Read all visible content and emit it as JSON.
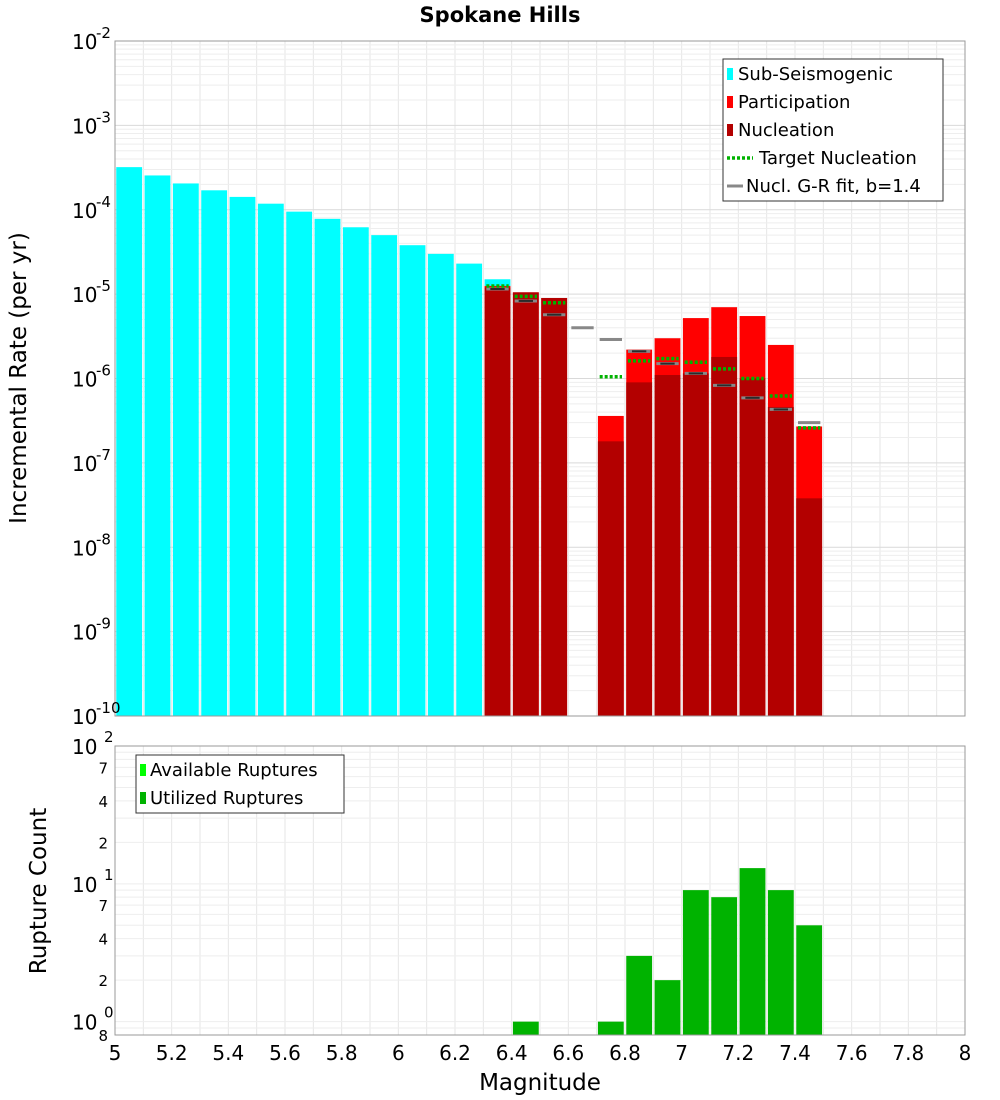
{
  "chart_data": [
    {
      "type": "bar",
      "title": "Spokane Hills",
      "xlabel": "",
      "ylabel": "Incremental Rate (per yr)",
      "yscale": "log",
      "ylim": [
        1e-10,
        0.01
      ],
      "xlim": [
        5,
        8
      ],
      "legend_position": "top-right",
      "y_ticks": [
        {
          "base": "10",
          "exp": "-10"
        },
        {
          "base": "10",
          "exp": "-9"
        },
        {
          "base": "10",
          "exp": "-8"
        },
        {
          "base": "10",
          "exp": "-7"
        },
        {
          "base": "10",
          "exp": "-6"
        },
        {
          "base": "10",
          "exp": "-5"
        },
        {
          "base": "10",
          "exp": "-4"
        },
        {
          "base": "10",
          "exp": "-3"
        },
        {
          "base": "10",
          "exp": "-2"
        }
      ],
      "legend": [
        {
          "label": "Sub-Seismogenic",
          "color": "#00ffff",
          "kind": "box"
        },
        {
          "label": "Participation",
          "color": "#ff0000",
          "kind": "box"
        },
        {
          "label": "Nucleation",
          "color": "#b30000",
          "kind": "box"
        },
        {
          "label": "Target Nucleation",
          "color": "#00b300",
          "kind": "dotted"
        },
        {
          "label": "Nucl. G-R fit, b=1.4",
          "color": "#888888",
          "kind": "solid"
        }
      ],
      "series": [
        {
          "name": "Sub-Seismogenic",
          "color": "#00ffff",
          "x": [
            5.05,
            5.15,
            5.25,
            5.35,
            5.45,
            5.55,
            5.65,
            5.75,
            5.85,
            5.95,
            6.05,
            6.15,
            6.25,
            6.35
          ],
          "values": [
            0.00032,
            0.000255,
            0.000205,
            0.00017,
            0.000142,
            0.000118,
            9.5e-05,
            7.8e-05,
            6.2e-05,
            5e-05,
            3.8e-05,
            3e-05,
            2.3e-05,
            1.5e-05
          ]
        },
        {
          "name": "Participation",
          "color": "#ff0000",
          "x": [
            6.35,
            6.45,
            6.55,
            6.75,
            6.85,
            6.95,
            7.05,
            7.15,
            7.25,
            7.35,
            7.45
          ],
          "values": [
            1.25e-05,
            1.05e-05,
            9e-06,
            3.6e-07,
            2.2e-06,
            3e-06,
            5.2e-06,
            7e-06,
            5.5e-06,
            2.5e-06,
            2.7e-07
          ]
        },
        {
          "name": "Nucleation",
          "color": "#b30000",
          "x": [
            6.35,
            6.45,
            6.55,
            6.75,
            6.85,
            6.95,
            7.05,
            7.15,
            7.25,
            7.35,
            7.45
          ],
          "values": [
            1.2e-05,
            1.05e-05,
            9e-06,
            1.8e-07,
            9e-07,
            1.1e-06,
            1.15e-06,
            1.8e-06,
            1e-06,
            4.6e-07,
            3.8e-08
          ]
        },
        {
          "name": "Target Nucleation",
          "color": "#00b300",
          "x": [
            6.35,
            6.45,
            6.55,
            6.75,
            6.85,
            6.95,
            7.05,
            7.15,
            7.25,
            7.35,
            7.45
          ],
          "values": [
            1.25e-05,
            9.4e-06,
            7.9e-06,
            1.05e-06,
            1.62e-06,
            1.72e-06,
            1.56e-06,
            1.3e-06,
            1e-06,
            6.2e-07,
            2.6e-07
          ]
        },
        {
          "name": "Nucl. G-R fit, b=1.4",
          "color": "#888888",
          "x": [
            6.35,
            6.45,
            6.55,
            6.65,
            6.75,
            6.85,
            6.95,
            7.05,
            7.15,
            7.25,
            7.35,
            7.45
          ],
          "values": [
            1.15e-05,
            8.3e-06,
            5.7e-06,
            4e-06,
            2.9e-06,
            2.1e-06,
            1.5e-06,
            1.15e-06,
            8.3e-07,
            5.9e-07,
            4.3e-07,
            3e-07
          ]
        }
      ]
    },
    {
      "type": "bar",
      "title": "",
      "xlabel": "Magnitude",
      "ylabel": "Rupture Count",
      "yscale": "log",
      "ylim": [
        0.8,
        100
      ],
      "xlim": [
        5,
        8
      ],
      "legend_position": "top-left",
      "x_ticks": [
        "5",
        "5.2",
        "5.4",
        "5.6",
        "5.8",
        "6",
        "6.2",
        "6.4",
        "6.6",
        "6.8",
        "7",
        "7.2",
        "7.4",
        "7.6",
        "7.8",
        "8"
      ],
      "y_ticks": [
        {
          "base": "10",
          "exp": "0"
        },
        {
          "base": "10",
          "exp": "1"
        },
        {
          "base": "10",
          "exp": "2"
        }
      ],
      "y_minor_ticks": [
        "8",
        "2",
        "4",
        "7",
        "2",
        "4",
        "7"
      ],
      "legend": [
        {
          "label": "Available Ruptures",
          "color": "#00ff00",
          "kind": "box"
        },
        {
          "label": "Utilized Ruptures",
          "color": "#00b300",
          "kind": "box"
        }
      ],
      "series": [
        {
          "name": "Utilized Ruptures",
          "color": "#00b300",
          "x": [
            6.45,
            6.75,
            6.85,
            6.95,
            7.05,
            7.15,
            7.25,
            7.35,
            7.45
          ],
          "values": [
            1,
            1,
            3,
            2,
            9,
            8,
            13,
            9,
            5
          ]
        }
      ]
    }
  ]
}
